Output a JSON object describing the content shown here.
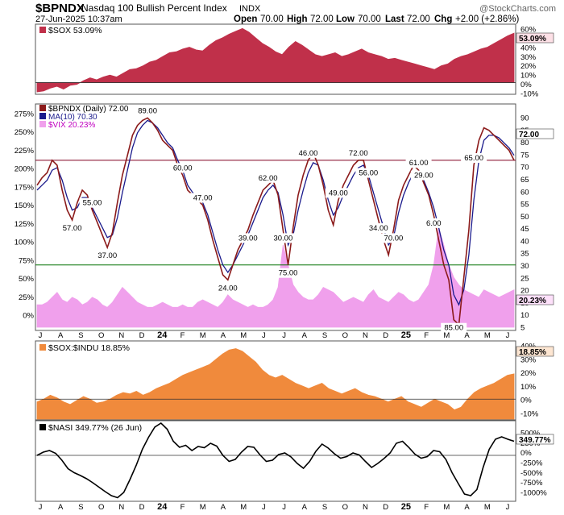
{
  "header": {
    "symbol": "$BPNDX",
    "name": "Nasdaq 100 Bullish Percent Index",
    "exchange": "INDX",
    "date": "27-Jun-2025 10:37am",
    "open_label": "Open",
    "open": "70.00",
    "high_label": "High",
    "high": "72.00",
    "low_label": "Low",
    "low": "70.00",
    "last_label": "Last",
    "last": "72.00",
    "chg_label": "Chg",
    "chg": "+2.00 (+2.86%)",
    "watermark": "@StockCharts.com"
  },
  "colors": {
    "sox": "#c0304a",
    "bpndx": "#8b1a1a",
    "ma": "#1a1a8c",
    "vix": "#f0a0ec",
    "ratio": "#f08a3c",
    "nasi": "#000000",
    "ref": "#007000"
  },
  "x_axis": {
    "labels": [
      "J",
      "A",
      "S",
      "O",
      "N",
      "D",
      "24",
      "F",
      "M",
      "A",
      "M",
      "J",
      "J",
      "A",
      "S",
      "O",
      "N",
      "D",
      "25",
      "F",
      "M",
      "A",
      "M",
      "J"
    ]
  },
  "chart_data": [
    {
      "panel": "sox",
      "type": "area",
      "legend": "$SOX 53.09%",
      "last_value_label": "53.09%",
      "yticks": [
        "60%",
        "50%",
        "40%",
        "30%",
        "20%",
        "10%",
        "0%",
        "-10%"
      ],
      "ylim": [
        -10,
        60
      ],
      "reference_line": 0,
      "values": [
        -10,
        -9,
        -6,
        -4,
        -7,
        -3,
        -2,
        2,
        5,
        3,
        6,
        8,
        6,
        10,
        14,
        15,
        18,
        22,
        24,
        28,
        32,
        33,
        36,
        38,
        35,
        34,
        40,
        45,
        48,
        52,
        55,
        58,
        54,
        48,
        42,
        38,
        33,
        30,
        38,
        44,
        40,
        35,
        30,
        28,
        30,
        32,
        28,
        30,
        33,
        36,
        32,
        30,
        28,
        25,
        26,
        24,
        22,
        20,
        18,
        16,
        14,
        18,
        20,
        25,
        28,
        30,
        33,
        36,
        38,
        42,
        46,
        50,
        53
      ]
    },
    {
      "panel": "bpndx",
      "type": "line",
      "legend": [
        {
          "label": "$BPNDX (Daily) 72.00",
          "series": "bpndx"
        },
        {
          "label": "MA(10) 70.30",
          "series": "ma"
        },
        {
          "label": "$VIX 20.23%",
          "series": "vix"
        }
      ],
      "last_value_label": "72.00",
      "vix_last_label": "20.23%",
      "yticks_left": [
        "275%",
        "250%",
        "225%",
        "200%",
        "175%",
        "150%",
        "125%",
        "100%",
        "75%",
        "50%",
        "25%",
        "0%"
      ],
      "yticks_right": [
        "90",
        "85",
        "80",
        "75",
        "70",
        "65",
        "60",
        "55",
        "50",
        "45",
        "40",
        "35",
        "30",
        "25",
        "20",
        "15",
        "10",
        "5"
      ],
      "ylim": [
        5,
        92
      ],
      "reference_lines": [
        72,
        30
      ],
      "annotations": [
        {
          "label": "57.00",
          "index": 7
        },
        {
          "label": "55.00",
          "index": 11
        },
        {
          "label": "37.00",
          "index": 14
        },
        {
          "label": "89.00",
          "index": 22
        },
        {
          "label": "60.00",
          "index": 29
        },
        {
          "label": "47.00",
          "index": 33
        },
        {
          "label": "24.00",
          "index": 38
        },
        {
          "label": "39.00",
          "index": 42
        },
        {
          "label": "62.00",
          "index": 46
        },
        {
          "label": "75.00",
          "index": 50
        },
        {
          "label": "30.00",
          "index": 49
        },
        {
          "label": "46.00",
          "index": 54
        },
        {
          "label": "49.00",
          "index": 60
        },
        {
          "label": "72.00",
          "index": 64
        },
        {
          "label": "56.00",
          "index": 66
        },
        {
          "label": "34.00",
          "index": 68
        },
        {
          "label": "70.00",
          "index": 71
        },
        {
          "label": "61.00",
          "index": 76
        },
        {
          "label": "29.00",
          "index": 77
        },
        {
          "label": "6.00",
          "index": 79
        },
        {
          "label": "85.00",
          "index": 83
        },
        {
          "label": "65.00",
          "index": 87
        }
      ],
      "bpndx": [
        62,
        65,
        67,
        72,
        70,
        60,
        52,
        48,
        55,
        60,
        58,
        52,
        47,
        42,
        37,
        43,
        55,
        66,
        74,
        82,
        86,
        88,
        89,
        87,
        84,
        80,
        78,
        76,
        70,
        66,
        60,
        58,
        56,
        54,
        48,
        40,
        33,
        26,
        24,
        30,
        36,
        40,
        44,
        50,
        55,
        60,
        62,
        64,
        58,
        44,
        30,
        45,
        58,
        66,
        72,
        75,
        70,
        62,
        52,
        46,
        56,
        62,
        66,
        70,
        72,
        72,
        64,
        56,
        48,
        40,
        34,
        44,
        56,
        62,
        66,
        70,
        68,
        63,
        58,
        50,
        40,
        30,
        24,
        8,
        6,
        25,
        44,
        70,
        80,
        85,
        84,
        82,
        80,
        78,
        76,
        72
      ],
      "ma": [
        60,
        62,
        64,
        68,
        69,
        64,
        57,
        52,
        53,
        57,
        57,
        53,
        49,
        45,
        41,
        42,
        49,
        59,
        68,
        77,
        83,
        86,
        88,
        87,
        85,
        82,
        79,
        77,
        72,
        68,
        62,
        59,
        57,
        55,
        50,
        43,
        36,
        30,
        27,
        30,
        34,
        38,
        42,
        47,
        52,
        57,
        60,
        62,
        59,
        50,
        38,
        42,
        52,
        60,
        67,
        71,
        70,
        64,
        56,
        50,
        53,
        58,
        62,
        66,
        69,
        70,
        66,
        59,
        52,
        45,
        38,
        41,
        51,
        58,
        63,
        67,
        67,
        64,
        59,
        53,
        45,
        36,
        30,
        18,
        14,
        20,
        34,
        56,
        72,
        80,
        82,
        82,
        81,
        79,
        77,
        74
      ],
      "vix": [
        14,
        14,
        15,
        17,
        19,
        16,
        15,
        17,
        16,
        14,
        15,
        17,
        16,
        14,
        13,
        15,
        18,
        21,
        19,
        17,
        15,
        14,
        13,
        13,
        14,
        15,
        14,
        13,
        13,
        14,
        13,
        13,
        15,
        16,
        15,
        14,
        13,
        15,
        18,
        16,
        15,
        14,
        13,
        14,
        13,
        13,
        14,
        16,
        21,
        38,
        30,
        22,
        19,
        17,
        16,
        16,
        18,
        21,
        20,
        19,
        17,
        15,
        16,
        17,
        16,
        15,
        18,
        20,
        17,
        16,
        15,
        17,
        19,
        18,
        16,
        15,
        16,
        19,
        22,
        30,
        45,
        38,
        30,
        25,
        22,
        20,
        19,
        18,
        17,
        20,
        19,
        18,
        17,
        18,
        19,
        20
      ]
    },
    {
      "panel": "ratio",
      "type": "area",
      "legend": "$SOX:$INDU 18.85%",
      "last_value_label": "18.85%",
      "yticks": [
        "40%",
        "30%",
        "20%",
        "10%",
        "0%",
        "-10%"
      ],
      "ylim": [
        -15,
        42
      ],
      "reference_line": 0,
      "values": [
        -2,
        0,
        3,
        1,
        -2,
        -4,
        -1,
        2,
        0,
        -3,
        -2,
        0,
        3,
        5,
        4,
        6,
        3,
        5,
        8,
        10,
        12,
        15,
        18,
        20,
        22,
        24,
        26,
        30,
        34,
        37,
        38,
        36,
        32,
        28,
        22,
        18,
        16,
        18,
        15,
        12,
        10,
        8,
        10,
        12,
        8,
        6,
        4,
        6,
        8,
        5,
        3,
        2,
        0,
        -2,
        0,
        2,
        -2,
        -4,
        -6,
        -3,
        0,
        -2,
        -4,
        -8,
        -6,
        0,
        5,
        8,
        10,
        12,
        15,
        18,
        19
      ]
    },
    {
      "panel": "nasi",
      "type": "line",
      "legend": "$NASI 349.77% (26 Jun)",
      "last_value_label": "349.77%",
      "yticks": [
        "500%",
        "250%",
        "0%",
        "-250%",
        "-500%",
        "-750%",
        "-1000%"
      ],
      "ylim": [
        -1100,
        800
      ],
      "reference_line": 0,
      "values": [
        0,
        80,
        120,
        50,
        -120,
        -330,
        -430,
        -500,
        -580,
        -680,
        -790,
        -900,
        -1000,
        -1050,
        -920,
        -600,
        -250,
        150,
        450,
        700,
        800,
        650,
        350,
        200,
        250,
        120,
        220,
        190,
        300,
        230,
        0,
        -150,
        -100,
        80,
        220,
        200,
        10,
        -150,
        -120,
        20,
        60,
        -40,
        -200,
        -320,
        -150,
        100,
        280,
        180,
        40,
        -70,
        -30,
        60,
        10,
        -150,
        -300,
        -200,
        -80,
        60,
        300,
        350,
        200,
        30,
        -70,
        -30,
        120,
        90,
        -100,
        -430,
        -700,
        -960,
        -1000,
        -850,
        -300,
        150,
        400,
        460,
        400,
        350
      ]
    }
  ]
}
